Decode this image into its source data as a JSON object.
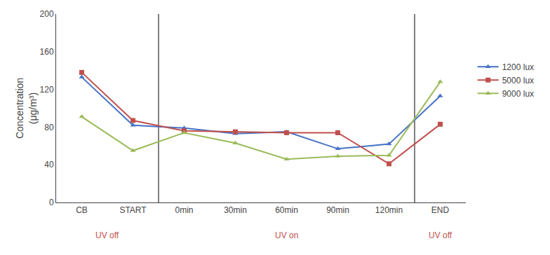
{
  "chart_data": {
    "type": "line",
    "ylabel": "Concentration\n(μg/m³)",
    "categories": [
      "CB",
      "START",
      "0min",
      "30min",
      "60min",
      "90min",
      "120min",
      "END"
    ],
    "series": [
      {
        "name": "1200 lux",
        "color": "#4472C4",
        "marker": "triangle",
        "values": [
          133,
          82,
          79,
          73,
          75,
          57,
          62,
          113
        ]
      },
      {
        "name": "5000 lux",
        "color": "#C0504D",
        "marker": "square",
        "values": [
          138,
          87,
          76,
          75,
          74,
          74,
          41,
          83
        ]
      },
      {
        "name": "9000 lux",
        "color": "#9BBB59",
        "marker": "triangle",
        "values": [
          91,
          55,
          74,
          63,
          46,
          49,
          50,
          128
        ]
      }
    ],
    "ylim": [
      0,
      200
    ],
    "yticks": [
      0,
      40,
      80,
      120,
      160,
      200
    ],
    "grid": false,
    "legend": "right",
    "annotations": [
      {
        "text": "UV off",
        "categories": [
          "CB",
          "START"
        ],
        "color": "#C0504D"
      },
      {
        "text": "UV on",
        "categories": [
          "0min",
          "30min",
          "60min",
          "90min",
          "120min"
        ],
        "color": "#C0504D"
      },
      {
        "text": "UV off",
        "categories": [
          "END"
        ],
        "color": "#C0504D"
      }
    ]
  }
}
